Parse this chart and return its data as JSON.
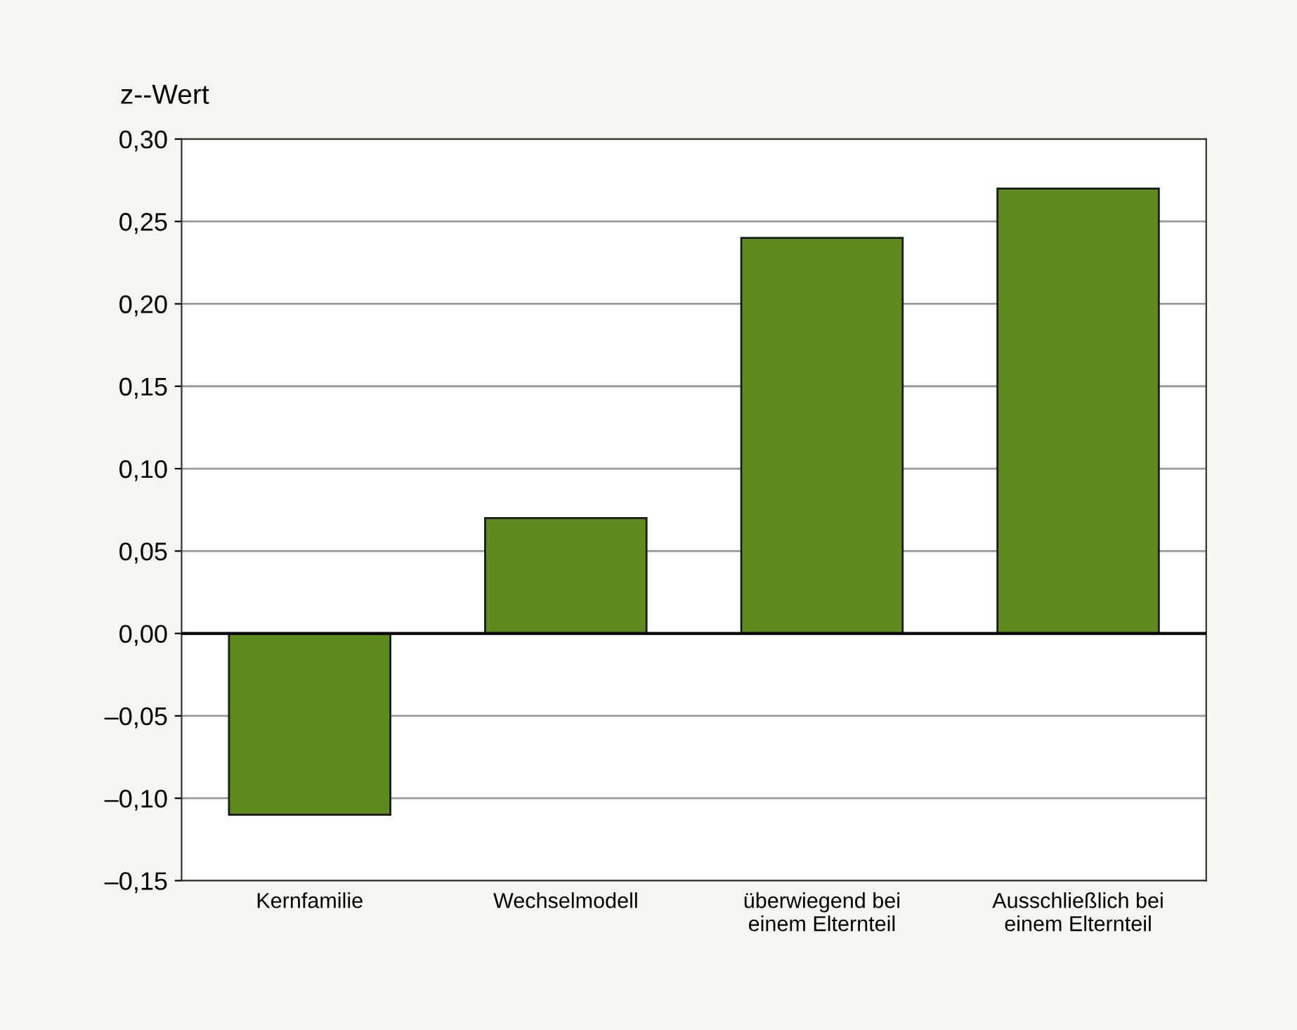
{
  "chart_data": {
    "type": "bar",
    "ylabel": "z--Wert",
    "categories": [
      "Kernfamilie",
      "Wechselmodell",
      "überwiegend bei\neinem Elternteil",
      "Ausschließlich bei\neinem Elternteil"
    ],
    "values": [
      -0.11,
      0.07,
      0.24,
      0.27
    ],
    "color": "#5f8a1f",
    "ylim": [
      -0.15,
      0.3
    ],
    "yticks": [
      {
        "value": -0.15,
        "label": "–0,15"
      },
      {
        "value": -0.1,
        "label": "–0,10"
      },
      {
        "value": -0.05,
        "label": "–0,05"
      },
      {
        "value": 0,
        "label": "0,00"
      },
      {
        "value": 0.05,
        "label": "0,05"
      },
      {
        "value": 0.1,
        "label": "0,10"
      },
      {
        "value": 0.15,
        "label": "0,15"
      },
      {
        "value": 0.2,
        "label": "0,20"
      },
      {
        "value": 0.25,
        "label": "0,25"
      },
      {
        "value": 0.3,
        "label": "0,30"
      }
    ],
    "grid": "y"
  }
}
